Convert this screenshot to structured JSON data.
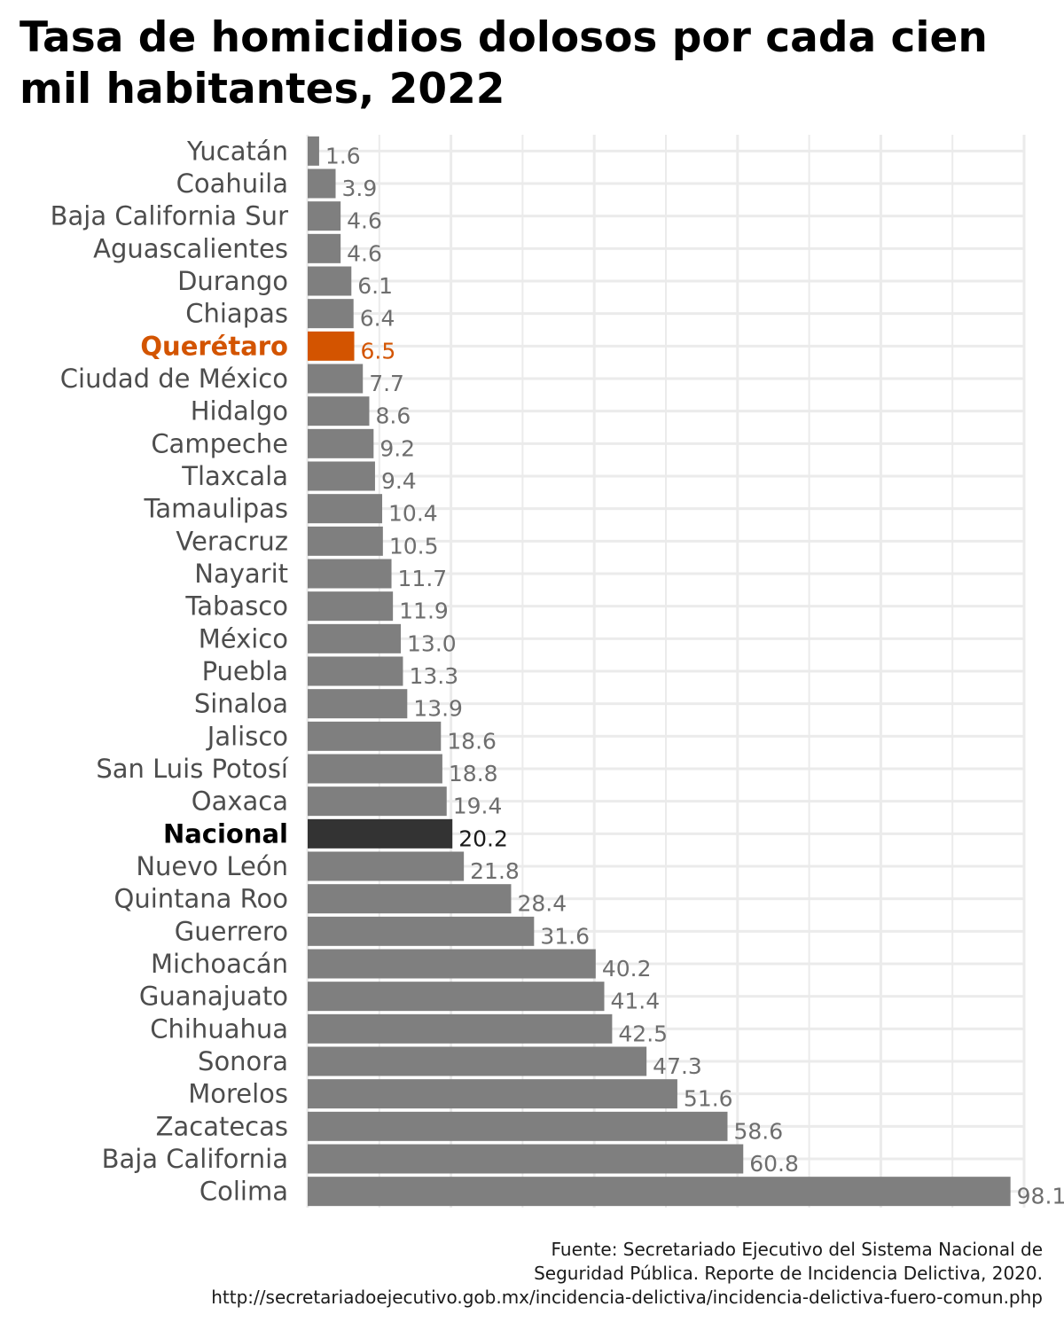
{
  "title": "Tasa de homicidios dolosos por cada cien mil habitantes, 2022",
  "source_lines": [
    "Fuente: Secretariado Ejecutivo del Sistema Nacional de",
    "Seguridad Pública. Reporte de Incidencia Delictiva, 2020.",
    "http://secretariadoejecutivo.gob.mx/incidencia-delictiva/incidencia-delictiva-fuero-comun.php"
  ],
  "colors": {
    "default_bar": "#7f7f7f",
    "default_label": "#4d4d4d",
    "default_value": "#6e6e6e",
    "highlight": "#d35400",
    "national": "#333333",
    "grid": "#ebebeb"
  },
  "chart_data": {
    "type": "bar",
    "orientation": "horizontal",
    "xlim": [
      0,
      100
    ],
    "grid": true,
    "axis_tick_labels_shown": false,
    "categories": [
      "Yucatán",
      "Coahuila",
      "Baja California Sur",
      "Aguascalientes",
      "Durango",
      "Chiapas",
      "Querétaro",
      "Ciudad de México",
      "Hidalgo",
      "Campeche",
      "Tlaxcala",
      "Tamaulipas",
      "Veracruz",
      "Nayarit",
      "Tabasco",
      "México",
      "Puebla",
      "Sinaloa",
      "Jalisco",
      "San Luis Potosí",
      "Oaxaca",
      "Nacional",
      "Nuevo León",
      "Quintana Roo",
      "Guerrero",
      "Michoacán",
      "Guanajuato",
      "Chihuahua",
      "Sonora",
      "Morelos",
      "Zacatecas",
      "Baja California",
      "Colima"
    ],
    "values": [
      1.6,
      3.9,
      4.6,
      4.6,
      6.1,
      6.4,
      6.5,
      7.7,
      8.6,
      9.2,
      9.4,
      10.4,
      10.5,
      11.7,
      11.9,
      13.0,
      13.3,
      13.9,
      18.6,
      18.8,
      19.4,
      20.2,
      21.8,
      28.4,
      31.6,
      40.2,
      41.4,
      42.5,
      47.3,
      51.6,
      58.6,
      60.8,
      98.1
    ],
    "value_labels": [
      "1.6",
      "3.9",
      "4.6",
      "4.6",
      "6.1",
      "6.4",
      "6.5",
      "7.7",
      "8.6",
      "9.2",
      "9.4",
      "10.4",
      "10.5",
      "11.7",
      "11.9",
      "13.0",
      "13.3",
      "13.9",
      "18.6",
      "18.8",
      "19.4",
      "20.2",
      "21.8",
      "28.4",
      "31.6",
      "40.2",
      "41.4",
      "42.5",
      "47.3",
      "51.6",
      "58.6",
      "60.8",
      "98.1"
    ],
    "highlight": "Querétaro",
    "reference": "Nacional"
  }
}
